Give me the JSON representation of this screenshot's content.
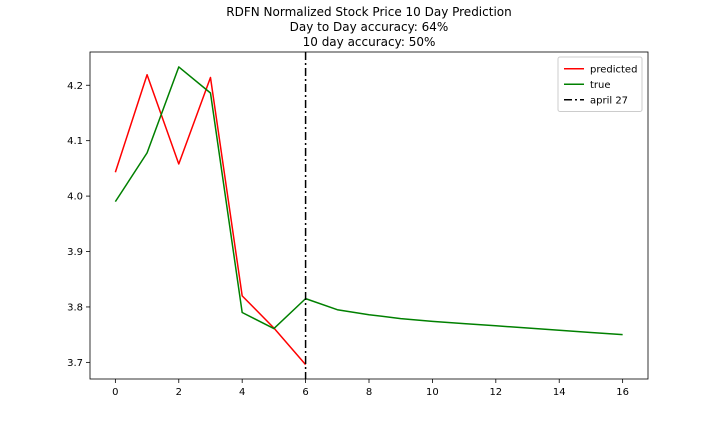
{
  "chart_data": {
    "type": "line",
    "title_lines": [
      "RDFN Normalized Stock Price 10 Day Prediction",
      "Day to Day accuracy: 64%",
      "10 day accuracy: 50%"
    ],
    "xlabel": "",
    "ylabel": "",
    "xlim": [
      -0.8,
      16.8
    ],
    "ylim": [
      3.67,
      4.26
    ],
    "x_ticks": [
      0,
      2,
      4,
      6,
      8,
      10,
      12,
      14,
      16
    ],
    "y_ticks": [
      3.7,
      3.8,
      3.9,
      4.0,
      4.1,
      4.2
    ],
    "grid": false,
    "legend_position": "top-right",
    "series": [
      {
        "name": "predicted",
        "color": "#ff0000",
        "style": "solid",
        "x": [
          0,
          1,
          2,
          3,
          4,
          5,
          6
        ],
        "y": [
          4.043,
          4.219,
          4.058,
          4.214,
          3.82,
          3.762,
          3.696
        ]
      },
      {
        "name": "true",
        "color": "#008000",
        "style": "solid",
        "x": [
          0,
          1,
          2,
          3,
          4,
          5,
          6,
          7,
          8,
          9,
          10,
          11,
          12,
          13,
          14,
          15,
          16
        ],
        "y": [
          3.99,
          4.078,
          4.233,
          4.186,
          3.79,
          3.761,
          3.815,
          3.795,
          3.786,
          3.779,
          3.774,
          3.77,
          3.766,
          3.762,
          3.758,
          3.754,
          3.75
        ]
      }
    ],
    "vlines": [
      {
        "name": "april 27",
        "x": 6,
        "color": "#000000",
        "style": "dashdot"
      }
    ]
  }
}
